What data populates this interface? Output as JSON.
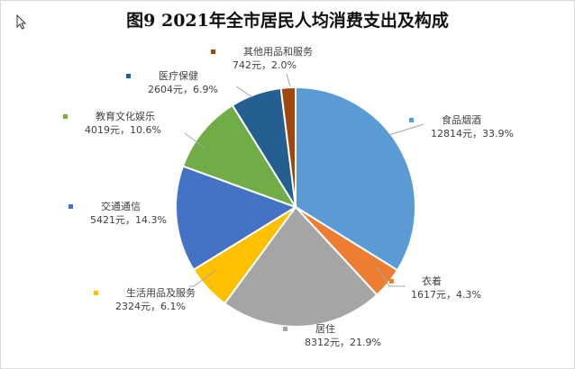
{
  "chart_data": {
    "type": "pie",
    "title": "图9  2021年全市居民人均消费支出及构成",
    "unit": "元",
    "start": "top",
    "direction": "clockwise",
    "legend": "none",
    "slices": [
      {
        "name": "食品烟酒",
        "value": 12814,
        "percent": "33.9%",
        "color": "#5B9BD5"
      },
      {
        "name": "衣着",
        "value": 1617,
        "percent": "4.3%",
        "color": "#ED7D31"
      },
      {
        "name": "居住",
        "value": 8312,
        "percent": "21.9%",
        "color": "#A5A5A5"
      },
      {
        "name": "生活用品及服务",
        "value": 2324,
        "percent": "6.1%",
        "color": "#FFC000"
      },
      {
        "name": "交通通信",
        "value": 5421,
        "percent": "14.3%",
        "color": "#4472C4"
      },
      {
        "name": "教育文化娱乐",
        "value": 4019,
        "percent": "10.6%",
        "color": "#70AD47"
      },
      {
        "name": "医疗保健",
        "value": 2604,
        "percent": "6.9%",
        "color": "#255E91"
      },
      {
        "name": "其他用品和服务",
        "value": 742,
        "percent": "2.0%",
        "color": "#9E480E"
      }
    ]
  }
}
